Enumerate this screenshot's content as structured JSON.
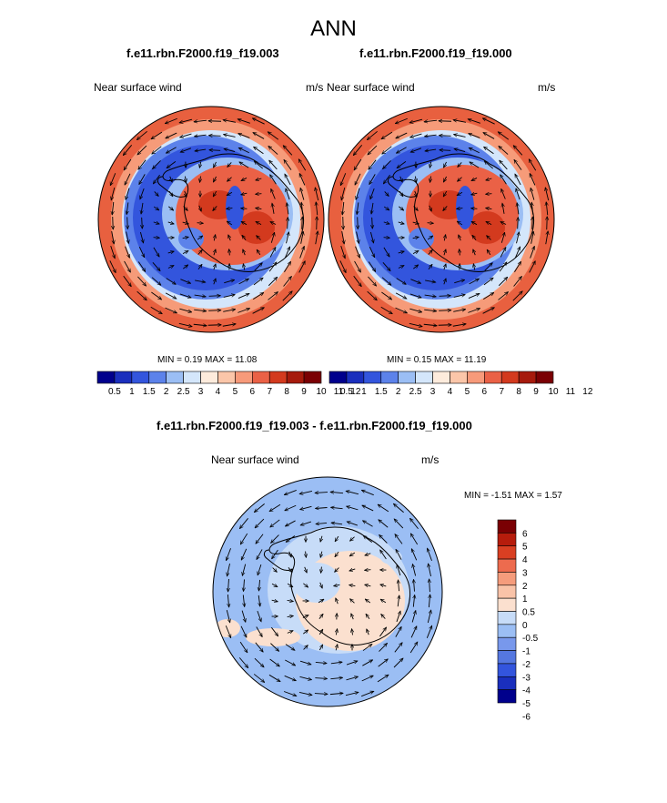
{
  "page_title": "ANN",
  "colors": {
    "palette12": [
      "#00008c",
      "#1a2fbd",
      "#3355dd",
      "#5c82ea",
      "#9bbef4",
      "#d4e6fb",
      "#fdebdc",
      "#fbc6a9",
      "#f79a7a",
      "#ea6146",
      "#d33a1e",
      "#a61a0c",
      "#7a0003"
    ],
    "diff_palette": [
      "#00008c",
      "#1a2fbd",
      "#3355dd",
      "#5577e0",
      "#7898ec",
      "#9bbef4",
      "#c7dcf8",
      "#fbe0cf",
      "#f9c3a8",
      "#f59c7c",
      "#ed6b4e",
      "#d93f22",
      "#b61c0c",
      "#7a0003"
    ],
    "land_outline": "#000000",
    "vector": "#000000"
  },
  "chart_data": [
    {
      "type": "heatmap",
      "projection": "south-polar-stereographic",
      "title": "f.e11.rbn.F2000.f19_f19.003",
      "left_label": "Near surface wind",
      "right_label": "m/s",
      "min_label": "MIN =",
      "min_value": "0.19",
      "max_label": "MAX =",
      "max_value": "11.08",
      "colorbar_ticks": [
        "0.5",
        "1",
        "1.5",
        "2",
        "2.5",
        "3",
        "4",
        "5",
        "6",
        "7",
        "8",
        "9",
        "10",
        "11",
        "12"
      ],
      "overlay": "wind-vectors"
    },
    {
      "type": "heatmap",
      "projection": "south-polar-stereographic",
      "title": "f.e11.rbn.F2000.f19_f19.000",
      "left_label": "Near surface wind",
      "right_label": "m/s",
      "min_label": "MIN =",
      "min_value": "0.15",
      "max_label": "MAX =",
      "max_value": "11.19",
      "colorbar_ticks": [
        "0.5",
        "1",
        "1.5",
        "2",
        "2.5",
        "3",
        "4",
        "5",
        "6",
        "7",
        "8",
        "9",
        "10",
        "11",
        "12"
      ],
      "overlay": "wind-vectors"
    },
    {
      "type": "heatmap",
      "projection": "south-polar-stereographic",
      "title": "f.e11.rbn.F2000.f19_f19.003 - f.e11.rbn.F2000.f19_f19.000",
      "left_label": "Near surface wind",
      "right_label": "m/s",
      "min_label": "MIN =",
      "min_value": "-1.51",
      "max_label": "MAX =",
      "max_value": "1.57",
      "colorbar_ticks": [
        "6",
        "5",
        "4",
        "3",
        "2",
        "1",
        "0.5",
        "0",
        "-0.5",
        "-1",
        "-2",
        "-3",
        "-4",
        "-5",
        "-6"
      ],
      "overlay": "wind-vectors-difference"
    }
  ]
}
